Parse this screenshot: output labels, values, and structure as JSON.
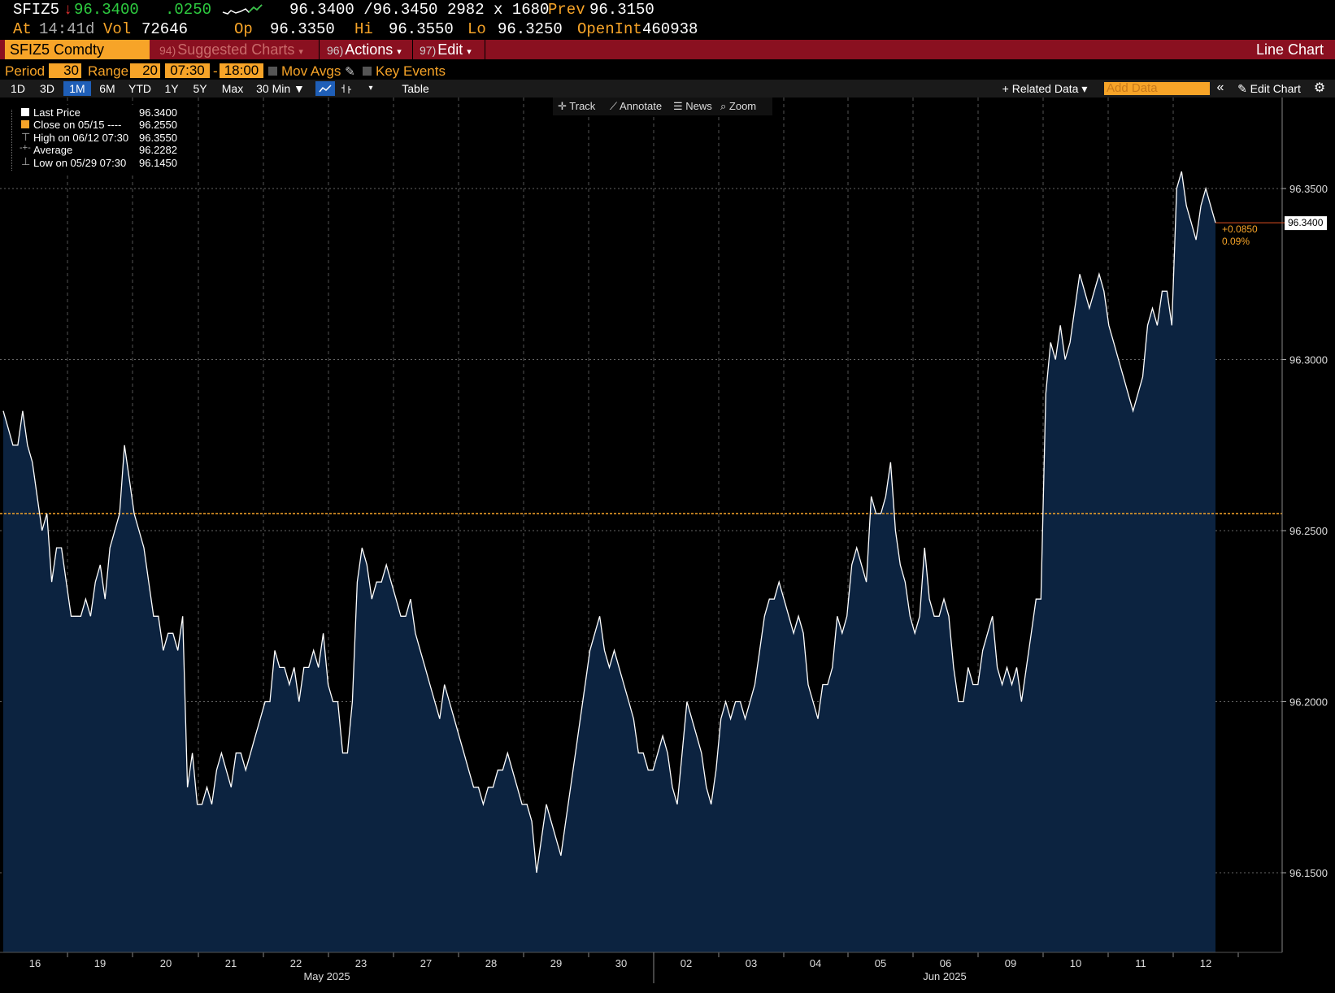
{
  "quote": {
    "ticker": "SFIZ5",
    "arrow": "↓",
    "last": "96.3400",
    "change": ".0250",
    "bid_ask": "96.3400 /96.3450",
    "size": "2982 x 1680",
    "prev_label": "Prev",
    "prev": "96.3150",
    "at_label": "At",
    "time": "14:41d",
    "vol_label": "Vol",
    "vol": "72646",
    "op_label": "Op",
    "op": "96.3350",
    "hi_label": "Hi",
    "hi": "96.3550",
    "lo_label": "Lo",
    "lo": "96.3250",
    "oi_label": "OpenInt",
    "oi": "460938"
  },
  "menubar": {
    "security": "SFIZ5 Comdty",
    "suggested_num": "94)",
    "suggested": "Suggested Charts",
    "actions_num": "96)",
    "actions": "Actions",
    "edit_num": "97)",
    "edit": "Edit",
    "chart_type": "Line Chart"
  },
  "settings": {
    "period_label": "Period",
    "period": "30",
    "range_label": "Range",
    "range": "20",
    "start_time": "07:30",
    "dash": "-",
    "end_time": "18:00",
    "mov_avgs": "Mov Avgs",
    "key_events": "Key Events"
  },
  "toolbar": {
    "ranges": [
      "1D",
      "3D",
      "1M",
      "6M",
      "YTD",
      "1Y",
      "5Y",
      "Max"
    ],
    "active_range": "1M",
    "interval": "30 Min ▼",
    "table": "Table",
    "related": "+ Related Data ▾",
    "add_data_placeholder": "Add Data",
    "collapse": "«",
    "edit_chart": "✎ Edit Chart",
    "gear_icon": "gear-icon"
  },
  "tools": {
    "track": "Track",
    "annotate": "Annotate",
    "news": "News",
    "zoom": "Zoom"
  },
  "legend": {
    "last_price_label": "Last Price",
    "last_price": "96.3400",
    "close_label": "Close on 05/15 ----",
    "close": "96.2550",
    "high_label": "High on 06/12 07:30",
    "high": "96.3550",
    "average_label": "Average",
    "average": "96.2282",
    "low_label": "Low on 05/29 07:30",
    "low": "96.1450"
  },
  "colors": {
    "background": "#000000",
    "accent": "#f7a428",
    "menubar": "#8a1020",
    "area_fill": "#0c2340",
    "line": "#ffffff",
    "up": "#2ecc40",
    "down": "#e03030"
  },
  "chart_data": {
    "type": "area",
    "ylim": [
      96.12,
      96.37
    ],
    "yticks": [
      "96.3500",
      "96.3000",
      "96.2500",
      "96.2000",
      "96.1500"
    ],
    "ytick_values": [
      96.35,
      96.3,
      96.25,
      96.2,
      96.15
    ],
    "x_day_labels": [
      "16",
      "19",
      "20",
      "21",
      "22",
      "23",
      "27",
      "28",
      "29",
      "30",
      "02",
      "03",
      "04",
      "05",
      "06",
      "09",
      "10",
      "11",
      "12"
    ],
    "month_labels": [
      "May 2025",
      "Jun 2025"
    ],
    "reference_close": 96.255,
    "last_value": "96.3400",
    "change_value": "+0.0850",
    "change_pct": "0.09%",
    "series": [
      {
        "values": [
          96.285,
          96.28,
          96.275,
          96.275,
          96.285,
          96.275,
          96.27,
          96.26,
          96.25,
          96.255,
          96.235,
          96.245,
          96.245,
          96.235,
          96.225,
          96.225,
          96.225,
          96.23,
          96.225,
          96.235,
          96.24,
          96.23,
          96.245,
          96.25,
          96.255,
          96.275,
          96.265,
          96.255,
          96.25,
          96.245,
          96.235,
          96.225,
          96.225,
          96.215,
          96.22,
          96.22,
          96.215,
          96.225,
          96.175,
          96.185,
          96.17,
          96.17,
          96.175,
          96.17,
          96.18,
          96.185,
          96.18,
          96.175,
          96.185,
          96.185,
          96.18,
          96.185,
          96.19,
          96.195,
          96.2,
          96.2,
          96.215,
          96.21,
          96.21,
          96.205,
          96.21,
          96.2,
          96.21,
          96.21,
          96.215,
          96.21,
          96.22,
          96.205,
          96.2,
          96.2,
          96.185,
          96.185,
          96.2,
          96.235,
          96.245,
          96.24,
          96.23,
          96.235,
          96.235,
          96.24,
          96.235,
          96.23,
          96.225,
          96.225,
          96.23,
          96.22,
          96.215,
          96.21,
          96.205,
          96.2,
          96.195,
          96.205,
          96.2,
          96.195,
          96.19,
          96.185,
          96.18,
          96.175,
          96.175,
          96.17,
          96.175,
          96.175,
          96.18,
          96.18,
          96.185,
          96.18,
          96.175,
          96.17,
          96.17,
          96.165,
          96.15,
          96.16,
          96.17,
          96.165,
          96.16,
          96.155,
          96.165,
          96.175,
          96.185,
          96.195,
          96.205,
          96.215,
          96.22,
          96.225,
          96.215,
          96.21,
          96.215,
          96.21,
          96.205,
          96.2,
          96.195,
          96.185,
          96.185,
          96.18,
          96.18,
          96.185,
          96.19,
          96.185,
          96.175,
          96.17,
          96.185,
          96.2,
          96.195,
          96.19,
          96.185,
          96.175,
          96.17,
          96.18,
          96.195,
          96.2,
          96.195,
          96.2,
          96.2,
          96.195,
          96.2,
          96.205,
          96.215,
          96.225,
          96.23,
          96.23,
          96.235,
          96.23,
          96.225,
          96.22,
          96.225,
          96.22,
          96.205,
          96.2,
          96.195,
          96.205,
          96.205,
          96.21,
          96.225,
          96.22,
          96.225,
          96.24,
          96.245,
          96.24,
          96.235,
          96.26,
          96.255,
          96.255,
          96.26,
          96.27,
          96.25,
          96.24,
          96.235,
          96.225,
          96.22,
          96.225,
          96.245,
          96.23,
          96.225,
          96.225,
          96.23,
          96.225,
          96.21,
          96.2,
          96.2,
          96.21,
          96.205,
          96.205,
          96.215,
          96.22,
          96.225,
          96.21,
          96.205,
          96.21,
          96.205,
          96.21,
          96.2,
          96.21,
          96.22,
          96.23,
          96.23,
          96.29,
          96.305,
          96.3,
          96.31,
          96.3,
          96.305,
          96.315,
          96.325,
          96.32,
          96.315,
          96.32,
          96.325,
          96.32,
          96.31,
          96.305,
          96.3,
          96.295,
          96.29,
          96.285,
          96.29,
          96.295,
          96.31,
          96.315,
          96.31,
          96.32,
          96.32,
          96.31,
          96.35,
          96.355,
          96.345,
          96.34,
          96.335,
          96.345,
          96.35,
          96.345,
          96.34
        ]
      }
    ]
  }
}
